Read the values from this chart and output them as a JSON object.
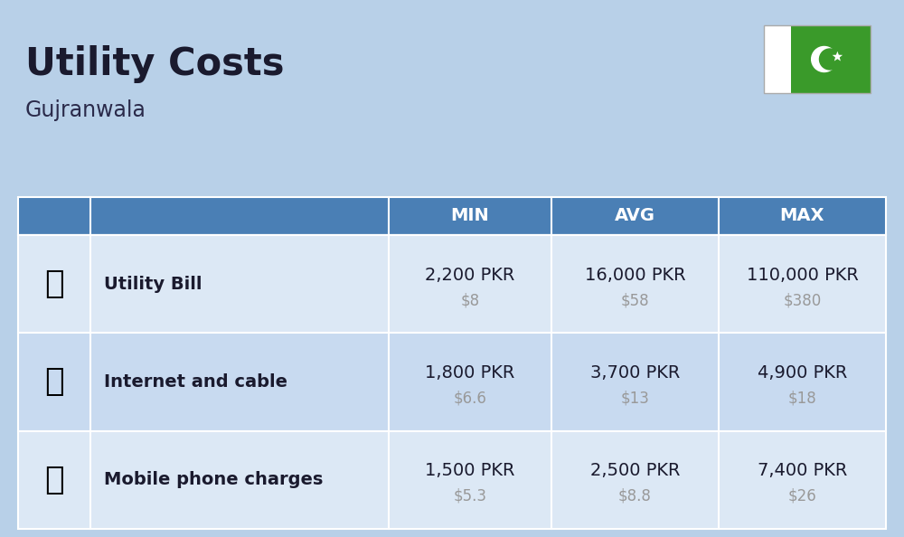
{
  "title": "Utility Costs",
  "subtitle": "Gujranwala",
  "background_color": "#b8d0e8",
  "header_color": "#4a7fb5",
  "header_text_color": "#ffffff",
  "columns": [
    "MIN",
    "AVG",
    "MAX"
  ],
  "rows": [
    {
      "label": "Utility Bill",
      "values_pkr": [
        "2,200 PKR",
        "16,000 PKR",
        "110,000 PKR"
      ],
      "values_usd": [
        "$8",
        "$58",
        "$380"
      ]
    },
    {
      "label": "Internet and cable",
      "values_pkr": [
        "1,800 PKR",
        "3,700 PKR",
        "4,900 PKR"
      ],
      "values_usd": [
        "$6.6",
        "$13",
        "$18"
      ]
    },
    {
      "label": "Mobile phone charges",
      "values_pkr": [
        "1,500 PKR",
        "2,500 PKR",
        "7,400 PKR"
      ],
      "values_usd": [
        "$5.3",
        "$8.8",
        "$26"
      ]
    }
  ],
  "title_fontsize": 30,
  "subtitle_fontsize": 17,
  "header_fontsize": 14,
  "label_fontsize": 14,
  "value_fontsize": 14,
  "usd_fontsize": 12,
  "usd_color": "#999999",
  "text_color": "#1a1a2e",
  "flag_green": "#3a9a2a",
  "flag_white": "#ffffff",
  "row_colors": [
    "#dce8f5",
    "#c8daf0"
  ],
  "table_border_color": "#5a8fc0",
  "divider_color": "#ffffff"
}
